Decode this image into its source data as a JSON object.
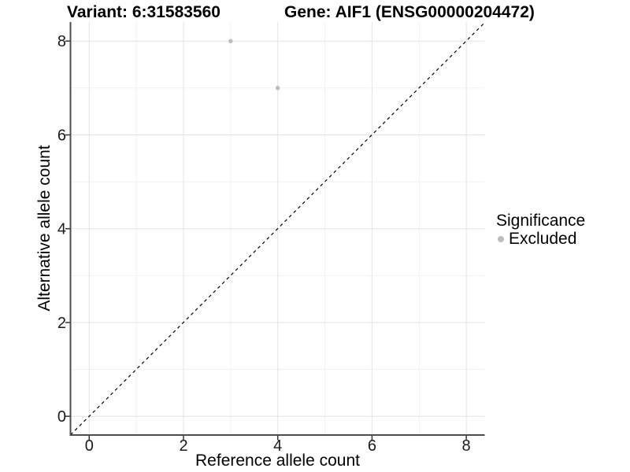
{
  "figure": {
    "title_left": "Variant: 6:31583560",
    "title_right": "Gene: AIF1 (ENSG00000204472)"
  },
  "chart_data": {
    "type": "scatter",
    "title_left": "Variant: 6:31583560",
    "title_right": "Gene: AIF1 (ENSG00000204472)",
    "xlabel": "Reference allele count",
    "ylabel": "Alternative allele count",
    "xlim": [
      -0.4,
      8.4
    ],
    "ylim": [
      -0.4,
      8.4
    ],
    "x_ticks": [
      0,
      2,
      4,
      6,
      8
    ],
    "y_ticks": [
      0,
      2,
      4,
      6,
      8
    ],
    "x_minor": [
      1,
      3,
      5,
      7
    ],
    "y_minor": [
      1,
      3,
      5,
      7
    ],
    "grid": true,
    "series": [
      {
        "name": "Excluded",
        "color": "#bebebe",
        "points": [
          {
            "x": 3,
            "y": 8
          },
          {
            "x": 4,
            "y": 7
          }
        ]
      }
    ],
    "identity_line": {
      "equation": "y = x",
      "style": "dashed",
      "color": "#000000"
    },
    "legend": {
      "position": "right",
      "title": "Significance",
      "entries": [
        {
          "label": "Excluded",
          "color": "#bdbdbd"
        }
      ]
    },
    "colors": {
      "grid_major": "#e3e3e3",
      "grid_minor": "#f1f1f1",
      "axis_line": "#4d4d4d",
      "tick_mark": "#333333",
      "tick_text": "#1a1a1a",
      "point": "#bebebe"
    }
  }
}
